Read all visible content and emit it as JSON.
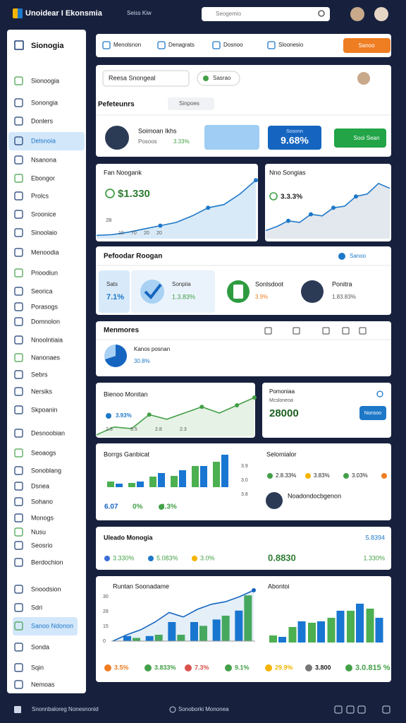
{
  "header": {
    "title": "Unoidear I Ekonsmia",
    "nav": "Seiss Kiw",
    "search": "Seogemio"
  },
  "sidebar": {
    "title": "Sionogia",
    "items": [
      "Sionoogia",
      "Sonongia",
      "Donlers",
      "Delsnoia",
      "Nsanona",
      "Ebongor",
      "Prolcs",
      "Sroonice",
      "Sinoolaio",
      "Menoodia",
      "Prioodiun",
      "Seorica",
      "Porasogs",
      "Domnolon",
      "Nnoolntiaia",
      "Nanonaes",
      "Sebrs",
      "Nersiks",
      "Skpoanin",
      "Desnoobian",
      "Seoaogs",
      "Sonoblang",
      "Dsnea",
      "Sohano",
      "Monogs",
      "Nusu",
      "Seosrio",
      "Berdochion",
      "Snoodsion",
      "Sdri",
      "Sanoo Ndonon",
      "Sonda",
      "Sqin",
      "Nemoas"
    ]
  },
  "tabs": [
    "Menolsnon",
    "Denagrats",
    "Dosnoo",
    "Sloonesio"
  ],
  "tab_button": "Sanoo",
  "profile": {
    "select": "Reesa Snongeal",
    "chip": "Sasrao",
    "title": "Pefeteunrs",
    "dropdown": "Sinpoes",
    "name": "Soimoan Ikhs",
    "sub": "Posoos",
    "pct": "3.33%",
    "kpi_label": "Sosonn",
    "kpi": "9.68%",
    "button": "Sooi Sean"
  },
  "line1": {
    "title": "Fan Noogank",
    "value": "$1.330",
    "axis_labels": [
      "2B",
      "10",
      "70",
      "20",
      "20"
    ],
    "values": [
      4,
      5,
      8,
      12,
      16,
      20,
      28,
      38,
      42,
      55,
      72
    ],
    "ylim": [
      0,
      80
    ],
    "color": "#1e78c8"
  },
  "line2": {
    "title": "Nno Songias",
    "value": "3.3.3%",
    "values": [
      10,
      15,
      22,
      20,
      30,
      28,
      38,
      40,
      52,
      55,
      68,
      62
    ],
    "ylim": [
      0,
      80
    ],
    "color": "#1e78c8"
  },
  "roogan": {
    "title": "Pefoodar Roogan",
    "link": "Sanoo",
    "stat_label": "Sats",
    "stat": "7.1%",
    "check_label": "Sonpiia",
    "check_pct": "1.3.83%",
    "logo_label": "Sonlsdoot",
    "logo_pct": "3.9%",
    "person": "Ponitra",
    "person_pct": "1.83.83%"
  },
  "menmores": {
    "title": "Menmores",
    "label": "Kanos posnan",
    "pct": "30.8%",
    "pie": [
      70,
      30
    ]
  },
  "green_line": {
    "title": "Bienoo Monitan",
    "value": "3.93%",
    "axis_labels": [
      "2.5",
      "3.5",
      "2.8",
      "2.3"
    ],
    "values": [
      2,
      12,
      10,
      28,
      22,
      30,
      38,
      30,
      40,
      50
    ],
    "ylim": [
      0,
      60
    ],
    "color": "#43a047"
  },
  "pomo": {
    "title": "Pomoniaa",
    "sub": "Mcsloneoa",
    "value": "28000",
    "button": "Nonsoo"
  },
  "bars1": {
    "title": "Borrgs Ganbicat",
    "axis_labels": [
      "3.9",
      "3.0",
      "3.8"
    ],
    "foot": [
      "6.07",
      "0%",
      "3.3%"
    ],
    "series": [
      {
        "color": "#4caf50",
        "values": [
          8,
          6,
          15,
          16,
          30,
          36
        ]
      },
      {
        "color": "#1976d2",
        "values": [
          5,
          8,
          20,
          24,
          30,
          46
        ]
      }
    ],
    "ylim": [
      0,
      50
    ]
  },
  "selo": {
    "title": "Selomialor",
    "items": [
      {
        "color": "#43a047",
        "label": "2.8.33%"
      },
      {
        "color": "#f4b400",
        "label": "3.83%"
      },
      {
        "color": "#43a047",
        "label": "3.03%"
      },
      {
        "color": "#ef7d22",
        "label": ""
      }
    ],
    "person": "Noadondocbgenon"
  },
  "uleado": {
    "title": "Uleado Monogia",
    "value": "5.8394",
    "items": [
      {
        "color": "#3b6fd8",
        "label": "3.330%"
      },
      {
        "color": "#1e78c8",
        "label": "5.083%"
      },
      {
        "color": "#f4b400",
        "label": "3.0%"
      }
    ],
    "big": "0.8830",
    "right": "1.330%"
  },
  "combo": {
    "title": "Runtan Soonadame",
    "axis_labels": [
      "30",
      "28",
      "15",
      "0"
    ],
    "line": [
      0,
      10,
      18,
      30,
      45,
      38,
      50,
      58,
      62,
      70,
      80
    ],
    "series": [
      {
        "color": "#1976d2",
        "values": [
          8,
          8,
          30,
          30,
          34,
          48
        ]
      },
      {
        "color": "#4caf50",
        "values": [
          5,
          10,
          10,
          24,
          40,
          72
        ]
      }
    ],
    "ylim": [
      0,
      80
    ]
  },
  "right_bars": {
    "title": "Abontoi",
    "series": [
      {
        "color": "#4caf50",
        "values": [
          10,
          22,
          28,
          35,
          45,
          48
        ]
      },
      {
        "color": "#1976d2",
        "values": [
          8,
          30,
          30,
          45,
          55,
          35
        ]
      }
    ],
    "ylim": [
      0,
      60
    ]
  },
  "bottom_stats": [
    {
      "color": "#ef7d22",
      "label": "3.5%"
    },
    {
      "color": "#43a047",
      "label": "3.833%"
    },
    {
      "color": "#d9534f",
      "label": "7.3%"
    },
    {
      "color": "#43a047",
      "label": "9.1%"
    },
    {
      "color": "#f4b400",
      "label": "29.9%"
    },
    {
      "color": "#777777",
      "label": "3.800"
    },
    {
      "color": "#43a047",
      "label": "3.0.815 %"
    }
  ],
  "footer": {
    "left": "Snonnbaloreg Nonesnonid",
    "center": "Sonoborki Mononea"
  }
}
